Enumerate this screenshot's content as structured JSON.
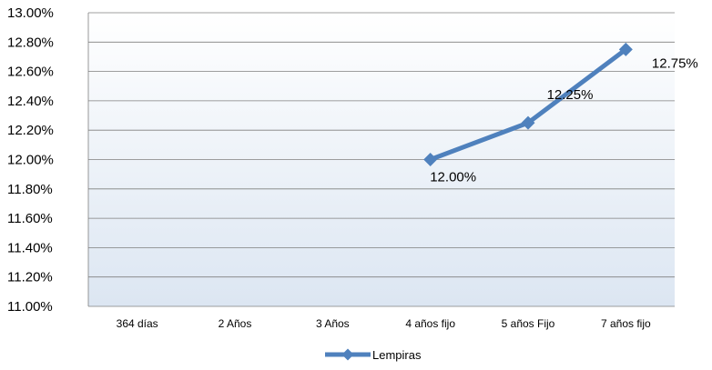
{
  "chart_data": {
    "type": "line",
    "title": "",
    "xlabel": "",
    "ylabel": "",
    "categories": [
      "364 días",
      "2 Años",
      "3 Años",
      "4 años fijo",
      "5 años Fijo",
      "7 años fijo"
    ],
    "series": [
      {
        "name": "Lempiras",
        "values": [
          null,
          null,
          null,
          12.0,
          12.25,
          12.75
        ],
        "data_labels": [
          "",
          "",
          "",
          "12.00%",
          "12.25%",
          "12.75%"
        ],
        "color": "#4F81BD"
      }
    ],
    "ylim": [
      11.0,
      13.0
    ],
    "yticks": [
      11.0,
      11.2,
      11.4,
      11.6,
      11.8,
      12.0,
      12.2,
      12.4,
      12.6,
      12.8,
      13.0
    ],
    "ytick_labels": [
      "11.00%",
      "11.20%",
      "11.40%",
      "11.60%",
      "11.80%",
      "12.00%",
      "12.20%",
      "12.40%",
      "12.60%",
      "12.80%",
      "13.00%"
    ],
    "grid": true,
    "legend_position": "bottom",
    "colors": {
      "plot_bg_top": "#FFFFFF",
      "plot_bg_bottom": "#DCE6F2",
      "gridline": "#7F7F7F",
      "series": "#4F81BD"
    }
  }
}
